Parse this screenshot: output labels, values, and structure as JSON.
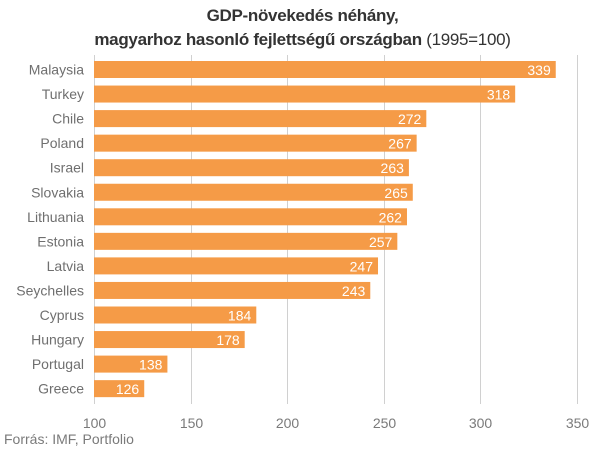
{
  "chart_data": {
    "type": "bar",
    "orientation": "horizontal",
    "title": "GDP-növekedés néhány,",
    "subtitle_bold": "magyarhoz hasonló fejlettségű országban",
    "subtitle_light": " (1995=100)",
    "categories": [
      "Malaysia",
      "Turkey",
      "Chile",
      "Poland",
      "Israel",
      "Slovakia",
      "Lithuania",
      "Estonia",
      "Latvia",
      "Seychelles",
      "Cyprus",
      "Hungary",
      "Portugal",
      "Greece"
    ],
    "values": [
      339,
      318,
      272,
      267,
      263,
      265,
      262,
      257,
      247,
      243,
      184,
      178,
      138,
      126
    ],
    "xlabel": "",
    "ylabel": "",
    "xlim": [
      100,
      350
    ],
    "xticks": [
      100,
      150,
      200,
      250,
      300,
      350
    ],
    "grid": true,
    "data_labels": true,
    "bar_color": "#F59B47",
    "source": "Forrás: IMF, Portfolio"
  }
}
